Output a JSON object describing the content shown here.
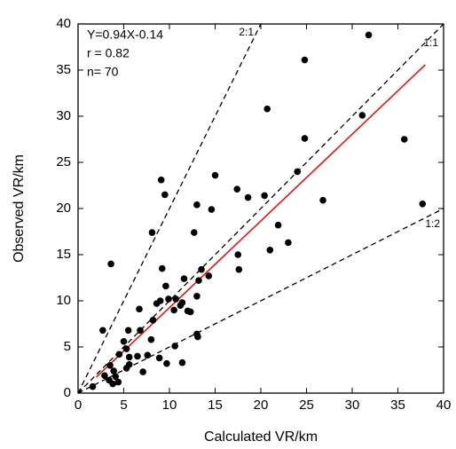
{
  "chart_data": {
    "type": "scatter",
    "xlabel": "Calculated VR/km",
    "ylabel": "Observed VR/km",
    "annotations": [
      "Y=0.94X-0.14",
      "r = 0.82",
      "n= 70"
    ],
    "xlim": [
      0,
      40
    ],
    "ylim": [
      0,
      40
    ],
    "xticks": [
      0,
      5,
      10,
      15,
      20,
      25,
      30,
      35,
      40
    ],
    "yticks": [
      0,
      5,
      10,
      15,
      20,
      25,
      30,
      35,
      40
    ],
    "points": {
      "color": "#000000",
      "x": [
        31.8,
        24.8,
        20.7,
        31.1,
        24.8,
        35.7,
        24.0,
        15.0,
        9.1,
        17.4,
        9.5,
        20.4,
        18.6,
        26.8,
        37.7,
        13.0,
        14.6,
        21.9,
        8.1,
        12.7,
        23.0,
        21.0,
        17.5,
        3.6,
        9.2,
        13.5,
        17.6,
        14.3,
        11.6,
        13.2,
        9.6,
        9.9,
        10.7,
        9.0,
        8.6,
        11.2,
        13.0,
        10.5,
        12.0,
        12.3,
        11.4,
        6.7,
        8.2,
        2.7,
        5.5,
        6.8,
        13.0,
        13.1,
        8.0,
        5.0,
        10.6,
        5.3,
        7.6,
        6.5,
        4.5,
        5.6,
        8.9,
        9.7,
        11.4,
        5.6,
        3.5,
        5.3,
        3.9,
        7.1,
        2.9,
        4.1,
        3.4,
        3.8,
        1.6,
        4.4
      ],
      "values": [
        38.8,
        36.1,
        30.8,
        30.1,
        27.6,
        27.5,
        24.0,
        23.6,
        23.1,
        22.1,
        21.5,
        21.4,
        21.2,
        20.9,
        20.5,
        20.4,
        19.9,
        18.2,
        17.4,
        17.4,
        16.3,
        15.5,
        15.0,
        14.0,
        13.5,
        13.4,
        13.4,
        12.7,
        12.4,
        12.2,
        11.6,
        10.2,
        10.2,
        10.0,
        9.7,
        9.5,
        10.5,
        9.0,
        8.9,
        8.8,
        9.8,
        9.1,
        7.9,
        6.8,
        6.8,
        6.8,
        6.4,
        6.1,
        5.8,
        5.6,
        5.1,
        4.8,
        4.1,
        4.0,
        4.2,
        3.9,
        3.8,
        3.2,
        3.3,
        3.1,
        3.0,
        2.7,
        2.4,
        2.3,
        1.9,
        1.8,
        1.4,
        1.0,
        0.7,
        1.2
      ]
    },
    "fit": {
      "color": "#ff0000",
      "x": [
        2,
        38
      ],
      "values": [
        1.74,
        35.58
      ]
    },
    "lines": [
      {
        "name": "2:1",
        "color": "#000000",
        "dashed": true,
        "x": [
          0,
          20
        ],
        "values": [
          0,
          40
        ]
      },
      {
        "name": "1:1",
        "color": "#000000",
        "dashed": true,
        "x": [
          0,
          40
        ],
        "values": [
          0,
          40
        ]
      },
      {
        "name": "1:2",
        "color": "#000000",
        "dashed": true,
        "x": [
          0,
          40
        ],
        "values": [
          0,
          20
        ]
      }
    ]
  }
}
